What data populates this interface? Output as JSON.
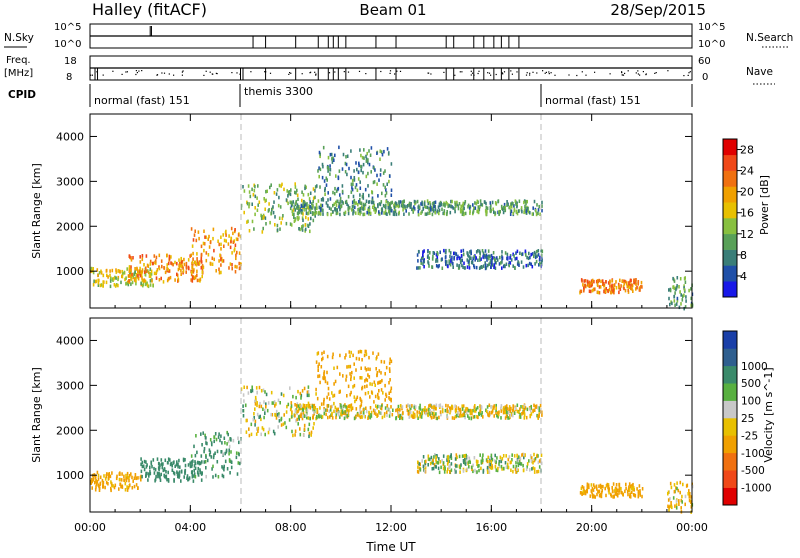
{
  "header": {
    "station": "Halley (fitACF)",
    "beam": "Beam 01",
    "date": "28/Sep/2015"
  },
  "panels": {
    "nsky": {
      "label": "N.Sky",
      "tick_top": "10^5",
      "tick_bottom": "10^0"
    },
    "nsearch": {
      "label": "N.Search",
      "tick_top": "10^5",
      "tick_bottom": "10^0"
    },
    "freq": {
      "label_line1": "Freq.",
      "label_line2": "[MHz]",
      "tick_top": "18",
      "tick_bottom": "8"
    },
    "nave": {
      "label": "Nave",
      "tick_top": "60",
      "tick_bottom": "0"
    },
    "cpid": {
      "label": "CPID",
      "segments": [
        {
          "label": "normal (fast) 151",
          "start_hour": 0
        },
        {
          "label": "themis 3300",
          "start_hour": 6
        },
        {
          "label": "normal (fast) 151",
          "start_hour": 18
        }
      ]
    }
  },
  "colors": {
    "power": [
      "#1818e8",
      "#2050a8",
      "#3a7e78",
      "#58a058",
      "#88c040",
      "#e8c000",
      "#f0a000",
      "#f07010",
      "#f04818",
      "#e00000"
    ],
    "velocity": [
      "#e00000",
      "#f04818",
      "#f07010",
      "#f0a000",
      "#e8c000",
      "#c8c8c8",
      "#58b040",
      "#3a8a6a",
      "#2f5f8f",
      "#1a3fa8"
    ]
  },
  "chart_data": [
    {
      "type": "heatmap",
      "title": "",
      "xlabel": "",
      "ylabel": "Slant Range [km]",
      "xlim": [
        0,
        24
      ],
      "ylim": [
        180,
        4500
      ],
      "x_ticks": [
        0,
        4,
        8,
        12,
        16,
        20,
        24
      ],
      "x_tick_labels": [
        "",
        "",
        "",
        "",
        "",
        "",
        ""
      ],
      "y_ticks": [
        1000,
        2000,
        3000,
        4000
      ],
      "colorbar": {
        "label": "Power [dB]",
        "ticks": [
          "4",
          "8",
          "12",
          "16",
          "20",
          "24",
          "28"
        ],
        "range": [
          0,
          30
        ]
      },
      "regions": [
        {
          "t0": 0.0,
          "t1": 2.5,
          "r_low": 700,
          "r_high": 1100,
          "value": 16
        },
        {
          "t0": 1.5,
          "t1": 4.5,
          "r_low": 800,
          "r_high": 1400,
          "value": 21
        },
        {
          "t0": 4.0,
          "t1": 6.0,
          "r_low": 1000,
          "r_high": 2000,
          "value": 20
        },
        {
          "t0": 6.0,
          "t1": 9.0,
          "r_low": 1900,
          "r_high": 3000,
          "value": 12
        },
        {
          "t0": 9.0,
          "t1": 12.0,
          "r_low": 2600,
          "r_high": 3800,
          "value": 8
        },
        {
          "t0": 8.0,
          "t1": 18.0,
          "r_low": 2300,
          "r_high": 2600,
          "value": 10
        },
        {
          "t0": 13.0,
          "t1": 18.0,
          "r_low": 1100,
          "r_high": 1500,
          "value": 6
        },
        {
          "t0": 19.5,
          "t1": 22.0,
          "r_low": 550,
          "r_high": 850,
          "value": 22
        },
        {
          "t0": 23.0,
          "t1": 24.0,
          "r_low": 200,
          "r_high": 900,
          "value": 10
        }
      ]
    },
    {
      "type": "heatmap",
      "title": "",
      "xlabel": "Time UT",
      "ylabel": "Slant Range [km]",
      "xlim": [
        0,
        24
      ],
      "ylim": [
        180,
        4500
      ],
      "x_ticks": [
        0,
        4,
        8,
        12,
        16,
        20,
        24
      ],
      "x_tick_labels": [
        "00:00",
        "04:00",
        "08:00",
        "12:00",
        "16:00",
        "20:00",
        "00:00"
      ],
      "y_ticks": [
        1000,
        2000,
        3000,
        4000
      ],
      "colorbar": {
        "label": "Velocity [m s^-1]",
        "ticks": [
          "-1000",
          "-500",
          "-100",
          "-25",
          "25",
          "100",
          "500",
          "1000"
        ]
      },
      "regions": [
        {
          "t0": 0.0,
          "t1": 2.0,
          "r_low": 700,
          "r_high": 1100,
          "value": -200
        },
        {
          "t0": 2.0,
          "t1": 4.5,
          "r_low": 900,
          "r_high": 1400,
          "value": 300
        },
        {
          "t0": 4.0,
          "t1": 6.0,
          "r_low": 1000,
          "r_high": 2000,
          "value": 150
        },
        {
          "t0": 6.0,
          "t1": 9.0,
          "r_low": 1900,
          "r_high": 3000,
          "value": 0
        },
        {
          "t0": 9.0,
          "t1": 12.0,
          "r_low": 2600,
          "r_high": 3800,
          "value": -200
        },
        {
          "t0": 8.0,
          "t1": 18.0,
          "r_low": 2300,
          "r_high": 2600,
          "value": -50
        },
        {
          "t0": 13.0,
          "t1": 18.0,
          "r_low": 1100,
          "r_high": 1500,
          "value": 0
        },
        {
          "t0": 19.5,
          "t1": 22.0,
          "r_low": 550,
          "r_high": 850,
          "value": -200
        },
        {
          "t0": 23.0,
          "t1": 24.0,
          "r_low": 200,
          "r_high": 900,
          "value": -100
        }
      ]
    }
  ]
}
